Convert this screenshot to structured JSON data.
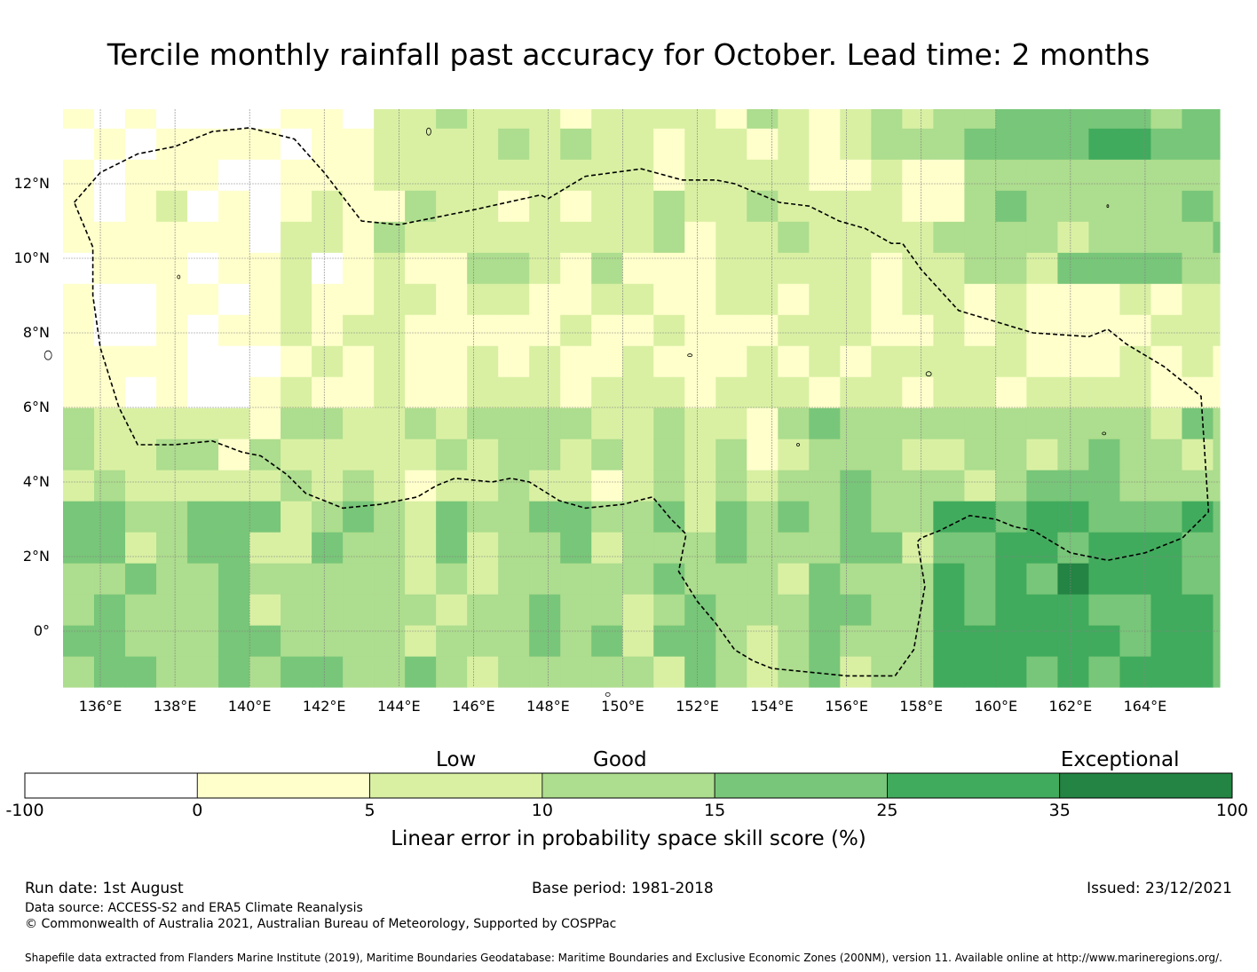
{
  "title": "Tercile monthly rainfall past accuracy for October. Lead time: 2 months",
  "map": {
    "lon_range": [
      135,
      166
    ],
    "lat_range": [
      -1.5,
      14
    ],
    "lat_ticks": [
      {
        "value": 12,
        "label": "12°N"
      },
      {
        "value": 10,
        "label": "10°N"
      },
      {
        "value": 8,
        "label": "8°N"
      },
      {
        "value": 6,
        "label": "6°N"
      },
      {
        "value": 4,
        "label": "4°N"
      },
      {
        "value": 2,
        "label": "2°N"
      },
      {
        "value": 0,
        "label": "0°"
      }
    ],
    "lon_ticks": [
      {
        "value": 136,
        "label": "136°E"
      },
      {
        "value": 138,
        "label": "138°E"
      },
      {
        "value": 140,
        "label": "140°E"
      },
      {
        "value": 142,
        "label": "142°E"
      },
      {
        "value": 144,
        "label": "144°E"
      },
      {
        "value": 146,
        "label": "146°E"
      },
      {
        "value": 148,
        "label": "148°E"
      },
      {
        "value": 150,
        "label": "150°E"
      },
      {
        "value": 152,
        "label": "152°E"
      },
      {
        "value": 154,
        "label": "154°E"
      },
      {
        "value": 156,
        "label": "156°E"
      },
      {
        "value": 158,
        "label": "158°E"
      },
      {
        "value": 160,
        "label": "160°E"
      },
      {
        "value": 162,
        "label": "162°E"
      },
      {
        "value": 164,
        "label": "164°E"
      }
    ],
    "grid": true,
    "boundary_style": "dashed",
    "eez_boundary": [
      [
        135.3,
        11.5
      ],
      [
        136.0,
        12.3
      ],
      [
        137.0,
        12.8
      ],
      [
        138.0,
        13.0
      ],
      [
        139.0,
        13.4
      ],
      [
        140.0,
        13.5
      ],
      [
        141.2,
        13.2
      ],
      [
        142.0,
        12.3
      ],
      [
        143.0,
        11.0
      ],
      [
        144.0,
        10.9
      ],
      [
        146.0,
        11.3
      ],
      [
        147.8,
        11.7
      ],
      [
        148.0,
        11.6
      ],
      [
        149.0,
        12.2
      ],
      [
        150.5,
        12.4
      ],
      [
        151.6,
        12.1
      ],
      [
        152.5,
        12.1
      ],
      [
        153.0,
        12.0
      ],
      [
        154.2,
        11.5
      ],
      [
        155.0,
        11.4
      ],
      [
        155.8,
        11.0
      ],
      [
        156.5,
        10.8
      ],
      [
        157.2,
        10.4
      ],
      [
        157.5,
        10.4
      ],
      [
        158.0,
        9.7
      ],
      [
        159.0,
        8.6
      ],
      [
        160.0,
        8.3
      ],
      [
        161.0,
        8.0
      ],
      [
        162.5,
        7.9
      ],
      [
        163.0,
        8.1
      ],
      [
        163.5,
        7.7
      ],
      [
        164.5,
        7.1
      ],
      [
        165.5,
        6.3
      ],
      [
        165.7,
        3.2
      ],
      [
        165.0,
        2.5
      ],
      [
        164.0,
        2.1
      ],
      [
        163.0,
        1.9
      ],
      [
        162.0,
        2.1
      ],
      [
        161.0,
        2.7
      ],
      [
        160.5,
        2.8
      ],
      [
        160.0,
        3.0
      ],
      [
        159.3,
        3.1
      ],
      [
        158.5,
        2.7
      ],
      [
        158.0,
        2.5
      ],
      [
        157.9,
        2.4
      ],
      [
        158.1,
        1.2
      ],
      [
        157.8,
        -0.5
      ],
      [
        157.3,
        -1.2
      ],
      [
        156.0,
        -1.2
      ],
      [
        155.0,
        -1.1
      ],
      [
        154.0,
        -1.0
      ],
      [
        153.5,
        -0.8
      ],
      [
        153.0,
        -0.5
      ],
      [
        152.5,
        0.2
      ],
      [
        152.0,
        0.8
      ],
      [
        151.5,
        1.6
      ],
      [
        151.7,
        2.6
      ],
      [
        151.3,
        3.0
      ],
      [
        150.8,
        3.6
      ],
      [
        150.0,
        3.4
      ],
      [
        149.0,
        3.3
      ],
      [
        148.3,
        3.5
      ],
      [
        147.5,
        4.0
      ],
      [
        147.0,
        4.1
      ],
      [
        146.5,
        4.0
      ],
      [
        145.5,
        4.1
      ],
      [
        145.0,
        3.9
      ],
      [
        144.5,
        3.6
      ],
      [
        143.5,
        3.4
      ],
      [
        142.5,
        3.3
      ],
      [
        141.5,
        3.7
      ],
      [
        141.0,
        4.2
      ],
      [
        140.3,
        4.7
      ],
      [
        139.8,
        4.8
      ],
      [
        139.0,
        5.1
      ],
      [
        138.0,
        5.0
      ],
      [
        137.0,
        5.0
      ],
      [
        136.5,
        6.0
      ],
      [
        136.0,
        7.6
      ],
      [
        135.8,
        9.0
      ],
      [
        135.8,
        10.3
      ],
      [
        135.3,
        11.5
      ]
    ]
  },
  "colorbar": {
    "categories": [
      {
        "label": "Low",
        "at": 2.5
      },
      {
        "label": "Good",
        "at": 3.45
      },
      {
        "label": "Exceptional",
        "at": 6.35
      }
    ],
    "bins": [
      {
        "from": "-100",
        "to": "0",
        "color": "#ffffff"
      },
      {
        "from": "0",
        "to": "5",
        "color": "#ffffcc"
      },
      {
        "from": "5",
        "to": "10",
        "color": "#d9f0a3"
      },
      {
        "from": "10",
        "to": "15",
        "color": "#addd8e"
      },
      {
        "from": "15",
        "to": "25",
        "color": "#78c679"
      },
      {
        "from": "25",
        "to": "35",
        "color": "#41ab5d"
      },
      {
        "from": "35",
        "to": "100",
        "color": "#238443"
      }
    ],
    "tick_labels": [
      "-100",
      "0",
      "5",
      "10",
      "15",
      "25",
      "35",
      "100"
    ],
    "title": "Linear error in probability space skill score (%)"
  },
  "footer": {
    "run_date": "Run date: 1st August",
    "base_period": "Base period: 1981-2018",
    "issued": "Issued: 23/12/2021",
    "data_source": "Data source: ACCESS-S2 and ERA5 Climate Reanalysis",
    "copyright": "© Commonwealth of Australia 2021, Australian Bureau of Meteorology, Supported by COSPPac",
    "shapefile": "Shapefile data extracted from Flanders Marine Institute (2019), Maritime Boundaries Geodatabase: Maritime Boundaries and Exclusive Economic Zones (200NM), version 11. Available online at http://www.marineregions.org/."
  }
}
